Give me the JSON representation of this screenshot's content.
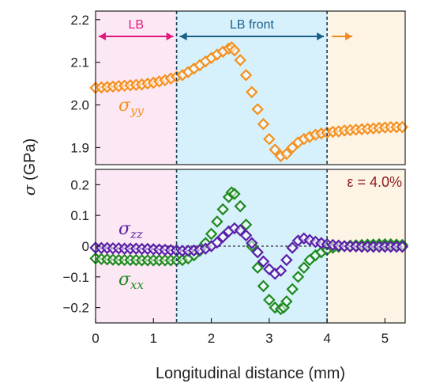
{
  "chart_data": [
    {
      "type": "scatter",
      "panel": "top",
      "ylim": [
        1.86,
        2.22
      ],
      "xlim": [
        0,
        5.35
      ],
      "yticks": [
        1.9,
        2.0,
        2.1,
        2.2
      ],
      "ytick_labels": [
        "1.9",
        "2.0",
        "2.1",
        "2.2"
      ],
      "regions": [
        {
          "label": "LB",
          "from": 0,
          "to": 1.4,
          "color": "#fce8f4",
          "text_color": "#e0197d"
        },
        {
          "label": "LB front",
          "from": 1.4,
          "to": 4.0,
          "color": "#d6f1fb",
          "text_color": "#1a5f8a"
        },
        {
          "label": "",
          "from": 4.0,
          "to": 5.35,
          "color": "#fdf4e6",
          "text_color": "#f08a1c"
        }
      ],
      "boundaries": [
        1.4,
        4.0
      ],
      "series": [
        {
          "name": "σyy",
          "label_main": "σ",
          "label_sub": "yy",
          "color": "#f5901e",
          "x": [
            0.0,
            0.1,
            0.2,
            0.3,
            0.4,
            0.5,
            0.6,
            0.7,
            0.8,
            0.9,
            1.0,
            1.1,
            1.2,
            1.3,
            1.4,
            1.5,
            1.6,
            1.7,
            1.8,
            1.9,
            2.0,
            2.1,
            2.2,
            2.3,
            2.35,
            2.4,
            2.5,
            2.6,
            2.7,
            2.8,
            2.9,
            3.0,
            3.1,
            3.2,
            3.3,
            3.4,
            3.5,
            3.6,
            3.7,
            3.8,
            3.9,
            4.0,
            4.1,
            4.2,
            4.3,
            4.4,
            4.5,
            4.6,
            4.7,
            4.8,
            4.9,
            5.0,
            5.1,
            5.2,
            5.3
          ],
          "y": [
            2.04,
            2.041,
            2.042,
            2.043,
            2.044,
            2.045,
            2.046,
            2.047,
            2.048,
            2.05,
            2.052,
            2.055,
            2.058,
            2.062,
            2.066,
            2.07,
            2.077,
            2.085,
            2.093,
            2.102,
            2.11,
            2.118,
            2.125,
            2.132,
            2.135,
            2.128,
            2.105,
            2.07,
            2.03,
            1.99,
            1.955,
            1.92,
            1.895,
            1.88,
            1.885,
            1.9,
            1.912,
            1.92,
            1.925,
            1.93,
            1.933,
            1.935,
            1.937,
            1.938,
            1.94,
            1.941,
            1.942,
            1.943,
            1.944,
            1.945,
            1.946,
            1.947,
            1.948,
            1.948,
            1.948
          ]
        }
      ]
    },
    {
      "type": "scatter",
      "panel": "bottom",
      "ylim": [
        -0.25,
        0.25
      ],
      "xlim": [
        0,
        5.35
      ],
      "yticks": [
        -0.2,
        -0.1,
        0,
        0.1,
        0.2
      ],
      "ytick_labels": [
        "−0.2",
        "−0.1",
        "0",
        "0.1",
        "0.2"
      ],
      "xticks": [
        0,
        1,
        2,
        3,
        4,
        5
      ],
      "xtick_labels": [
        "0",
        "1",
        "2",
        "3",
        "4",
        "5"
      ],
      "xlabel": "Longitudinal distance (mm)",
      "ylabel_main": "σ",
      "ylabel_rest": " (GPa)",
      "annotation": "ε = 4.0%",
      "annotation_color": "#8b1a1a",
      "zero_line": true,
      "boundaries": [
        1.4,
        4.0
      ],
      "series": [
        {
          "name": "σxx",
          "label_main": "σ",
          "label_sub": "xx",
          "color": "#1e8a1e",
          "x": [
            0.0,
            0.1,
            0.2,
            0.3,
            0.4,
            0.5,
            0.6,
            0.7,
            0.8,
            0.9,
            1.0,
            1.1,
            1.2,
            1.3,
            1.4,
            1.5,
            1.6,
            1.7,
            1.8,
            1.9,
            2.0,
            2.1,
            2.2,
            2.3,
            2.35,
            2.4,
            2.5,
            2.6,
            2.7,
            2.8,
            2.9,
            3.0,
            3.1,
            3.2,
            3.25,
            3.3,
            3.4,
            3.5,
            3.6,
            3.7,
            3.8,
            3.9,
            4.0,
            4.1,
            4.2,
            4.3,
            4.4,
            4.5,
            4.6,
            4.7,
            4.8,
            4.9,
            5.0,
            5.1,
            5.2,
            5.3
          ],
          "y": [
            -0.04,
            -0.042,
            -0.043,
            -0.044,
            -0.045,
            -0.045,
            -0.045,
            -0.045,
            -0.046,
            -0.046,
            -0.046,
            -0.046,
            -0.046,
            -0.046,
            -0.046,
            -0.045,
            -0.04,
            -0.03,
            -0.015,
            0.01,
            0.04,
            0.08,
            0.12,
            0.16,
            0.175,
            0.17,
            0.13,
            0.07,
            0.0,
            -0.07,
            -0.13,
            -0.175,
            -0.2,
            -0.205,
            -0.2,
            -0.18,
            -0.14,
            -0.1,
            -0.07,
            -0.045,
            -0.03,
            -0.02,
            -0.012,
            -0.005,
            -0.002,
            0.0,
            0.002,
            0.003,
            0.004,
            0.005,
            0.005,
            0.006,
            0.006,
            0.006,
            0.005,
            0.004
          ]
        },
        {
          "name": "σzz",
          "label_main": "σ",
          "label_sub": "zz",
          "color": "#5a1fa8",
          "x": [
            0.0,
            0.1,
            0.2,
            0.3,
            0.4,
            0.5,
            0.6,
            0.7,
            0.8,
            0.9,
            1.0,
            1.1,
            1.2,
            1.3,
            1.4,
            1.5,
            1.6,
            1.7,
            1.8,
            1.9,
            2.0,
            2.1,
            2.2,
            2.3,
            2.4,
            2.5,
            2.6,
            2.7,
            2.8,
            2.9,
            3.0,
            3.1,
            3.2,
            3.3,
            3.4,
            3.5,
            3.6,
            3.7,
            3.8,
            3.9,
            4.0,
            4.1,
            4.2,
            4.3,
            4.4,
            4.5,
            4.6,
            4.7,
            4.8,
            4.9,
            5.0,
            5.1,
            5.2,
            5.3
          ],
          "y": [
            -0.005,
            -0.006,
            -0.006,
            -0.007,
            -0.007,
            -0.008,
            -0.008,
            -0.008,
            -0.009,
            -0.009,
            -0.01,
            -0.011,
            -0.012,
            -0.013,
            -0.014,
            -0.015,
            -0.015,
            -0.014,
            -0.012,
            -0.008,
            0.0,
            0.012,
            0.03,
            0.048,
            0.058,
            0.052,
            0.035,
            0.01,
            -0.02,
            -0.05,
            -0.075,
            -0.09,
            -0.08,
            -0.045,
            -0.005,
            0.018,
            0.025,
            0.02,
            0.014,
            0.01,
            0.006,
            0.004,
            0.002,
            0.0,
            -0.001,
            -0.001,
            -0.002,
            -0.002,
            -0.002,
            -0.002,
            -0.002,
            -0.002,
            -0.002,
            -0.002
          ]
        }
      ]
    }
  ]
}
